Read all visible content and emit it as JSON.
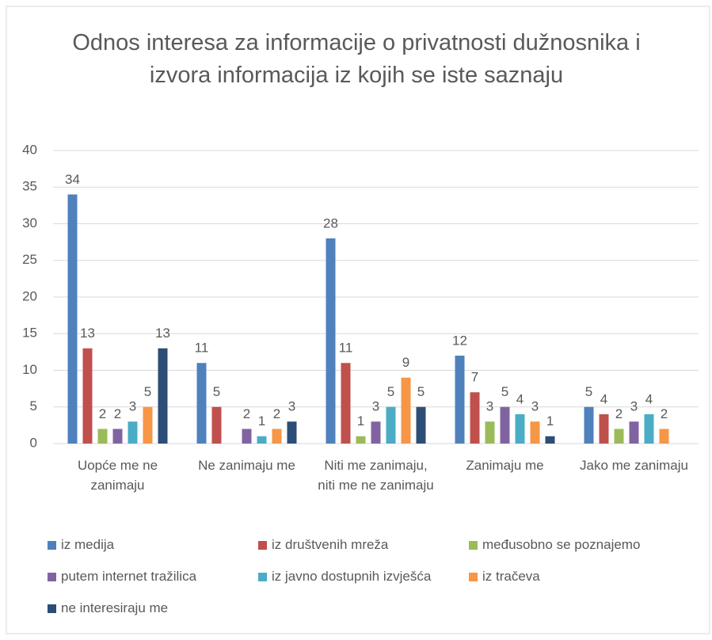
{
  "chart_data": {
    "type": "bar",
    "title": "Odnos interesa za informacije o privatnosti dužnosnika i izvora informacija iz kojih se iste saznaju",
    "categories": [
      "Uopće me ne zanimaju",
      "Ne zanimaju me",
      "Niti me zanimaju, niti me ne zanimaju",
      "Zanimaju me",
      "Jako me zanimaju"
    ],
    "series": [
      {
        "name": "iz medija",
        "color": "#4f81bd",
        "values": [
          34,
          11,
          28,
          12,
          5
        ]
      },
      {
        "name": "iz društvenih mreža",
        "color": "#c0504d",
        "values": [
          13,
          5,
          11,
          7,
          4
        ]
      },
      {
        "name": "međusobno se poznajemo",
        "color": "#9bbb59",
        "values": [
          2,
          0,
          1,
          3,
          2
        ]
      },
      {
        "name": "putem internet tražilica",
        "color": "#8064a2",
        "values": [
          2,
          2,
          3,
          5,
          3
        ]
      },
      {
        "name": "iz javno dostupnih izvješća",
        "color": "#4bacc6",
        "values": [
          3,
          1,
          5,
          4,
          4
        ]
      },
      {
        "name": "iz tračeva",
        "color": "#f79646",
        "values": [
          5,
          2,
          9,
          3,
          2
        ]
      },
      {
        "name": "ne interesiraju me",
        "color": "#2c4d75",
        "values": [
          13,
          3,
          5,
          1,
          0
        ]
      }
    ],
    "ylim": [
      0,
      40
    ],
    "yticks": [
      0,
      5,
      10,
      15,
      20,
      25,
      30,
      35,
      40
    ],
    "grid": true,
    "legend": "bottom"
  }
}
